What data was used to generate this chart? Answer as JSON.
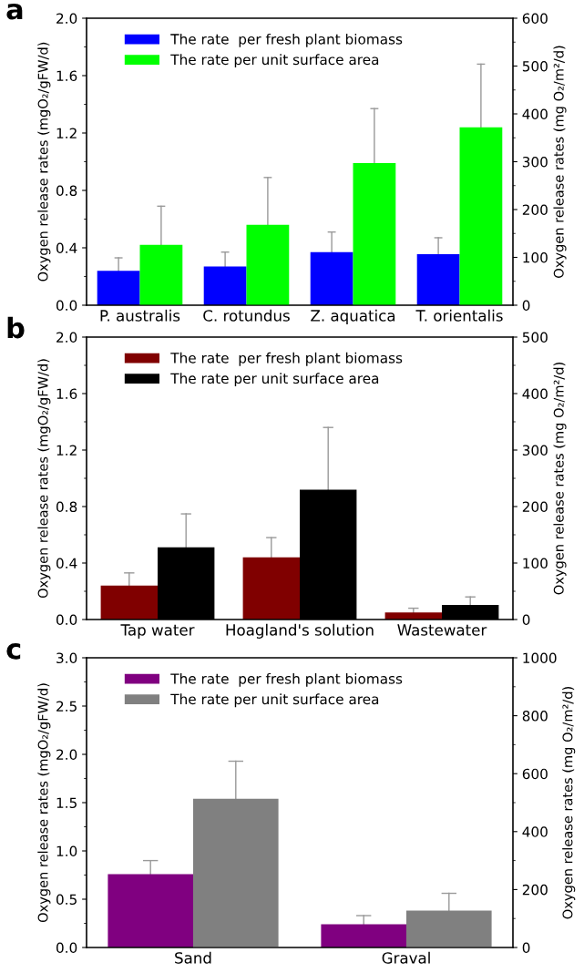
{
  "chart_data": [
    {
      "type": "bar",
      "title": "a",
      "categories": [
        "P. australis",
        "C. rotundus",
        "Z. aquatica",
        "T. orientalis"
      ],
      "ylabel": "Oxygen release rates (mgO₂/gFW/d)",
      "y2label": "Oxygen release rates (mg O₂/m²/d)",
      "ylim": [
        0,
        2.0
      ],
      "yticks": [
        {
          "value": 0,
          "label": "0.0"
        },
        0.4,
        0.8,
        1.2,
        1.6,
        {
          "value": 2,
          "label": "2.0"
        }
      ],
      "y2lim": [
        0,
        600
      ],
      "y2ticks": [
        0,
        100,
        200,
        300,
        400,
        500,
        600
      ],
      "legend": "top left",
      "grid": false,
      "series": [
        {
          "name": "The rate  per fresh plant biomass",
          "color": "#0000ff",
          "values": [
            0.24,
            0.27,
            0.37,
            0.355
          ],
          "errors": [
            [
              0.24,
              0.33
            ],
            [
              0.27,
              0.37
            ],
            [
              0.37,
              0.51
            ],
            [
              0.355,
              0.47
            ]
          ]
        },
        {
          "name": "The rate per unit surface area",
          "color": "#00ff00",
          "axis": "y2",
          "values": [
            126,
            168,
            297,
            372
          ],
          "errors": [
            [
              126,
              207
            ],
            [
              168,
              267
            ],
            [
              297,
              411
            ],
            [
              372,
              504
            ]
          ]
        }
      ]
    },
    {
      "type": "bar",
      "title": "b",
      "categories": [
        "Tap water",
        "Hoagland's solution",
        "Wastewater"
      ],
      "ylabel": "Oxygen release rates (mgO₂/gFW/d)",
      "y2label": "Oxygen release rates (mg O₂/m²/d)",
      "ylim": [
        0,
        2.0
      ],
      "yticks": [
        {
          "value": 0,
          "label": "0.0"
        },
        0.4,
        0.8,
        1.2,
        1.6,
        {
          "value": 2,
          "label": "2.0"
        }
      ],
      "y2lim": [
        0,
        500
      ],
      "y2ticks": [
        0,
        100,
        200,
        300,
        400,
        500
      ],
      "legend": "top left",
      "grid": false,
      "series": [
        {
          "name": "The rate  per fresh plant biomass",
          "color": "#800000",
          "values": [
            0.24,
            0.44,
            0.05
          ],
          "errors": [
            [
              0.24,
              0.33
            ],
            [
              0.44,
              0.58
            ],
            [
              0.05,
              0.08
            ]
          ]
        },
        {
          "name": "The rate per unit surface area",
          "color": "#000000",
          "axis": "y2",
          "values": [
            128,
            230,
            26
          ],
          "errors": [
            [
              128,
              187
            ],
            [
              230,
              340
            ],
            [
              26,
              40
            ]
          ]
        }
      ]
    },
    {
      "type": "bar",
      "title": "c",
      "categories": [
        "Sand",
        "Graval"
      ],
      "ylabel": "Oxygen release rates (mgO₂/gFW/d)",
      "y2label": "Oxygen release rates (mg O₂/m²/d)",
      "ylim": [
        0,
        3.0
      ],
      "yticks": [
        {
          "value": 0,
          "label": "0.0"
        },
        0.5,
        {
          "value": 1,
          "label": "1.0"
        },
        1.5,
        {
          "value": 2,
          "label": "2.0"
        },
        2.5,
        {
          "value": 3,
          "label": "3.0"
        }
      ],
      "y2lim": [
        0,
        1000
      ],
      "y2ticks": [
        0,
        200,
        400,
        600,
        800,
        1000
      ],
      "legend": "top left",
      "grid": false,
      "series": [
        {
          "name": "The rate  per fresh plant biomass",
          "color": "#800080",
          "values": [
            0.76,
            0.24
          ],
          "errors": [
            [
              0.76,
              0.9
            ],
            [
              0.24,
              0.33
            ]
          ]
        },
        {
          "name": "The rate per unit surface area",
          "color": "#808080",
          "axis": "y2",
          "values": [
            513,
            127
          ],
          "errors": [
            [
              513,
              643
            ],
            [
              127,
              187
            ]
          ]
        }
      ]
    }
  ]
}
